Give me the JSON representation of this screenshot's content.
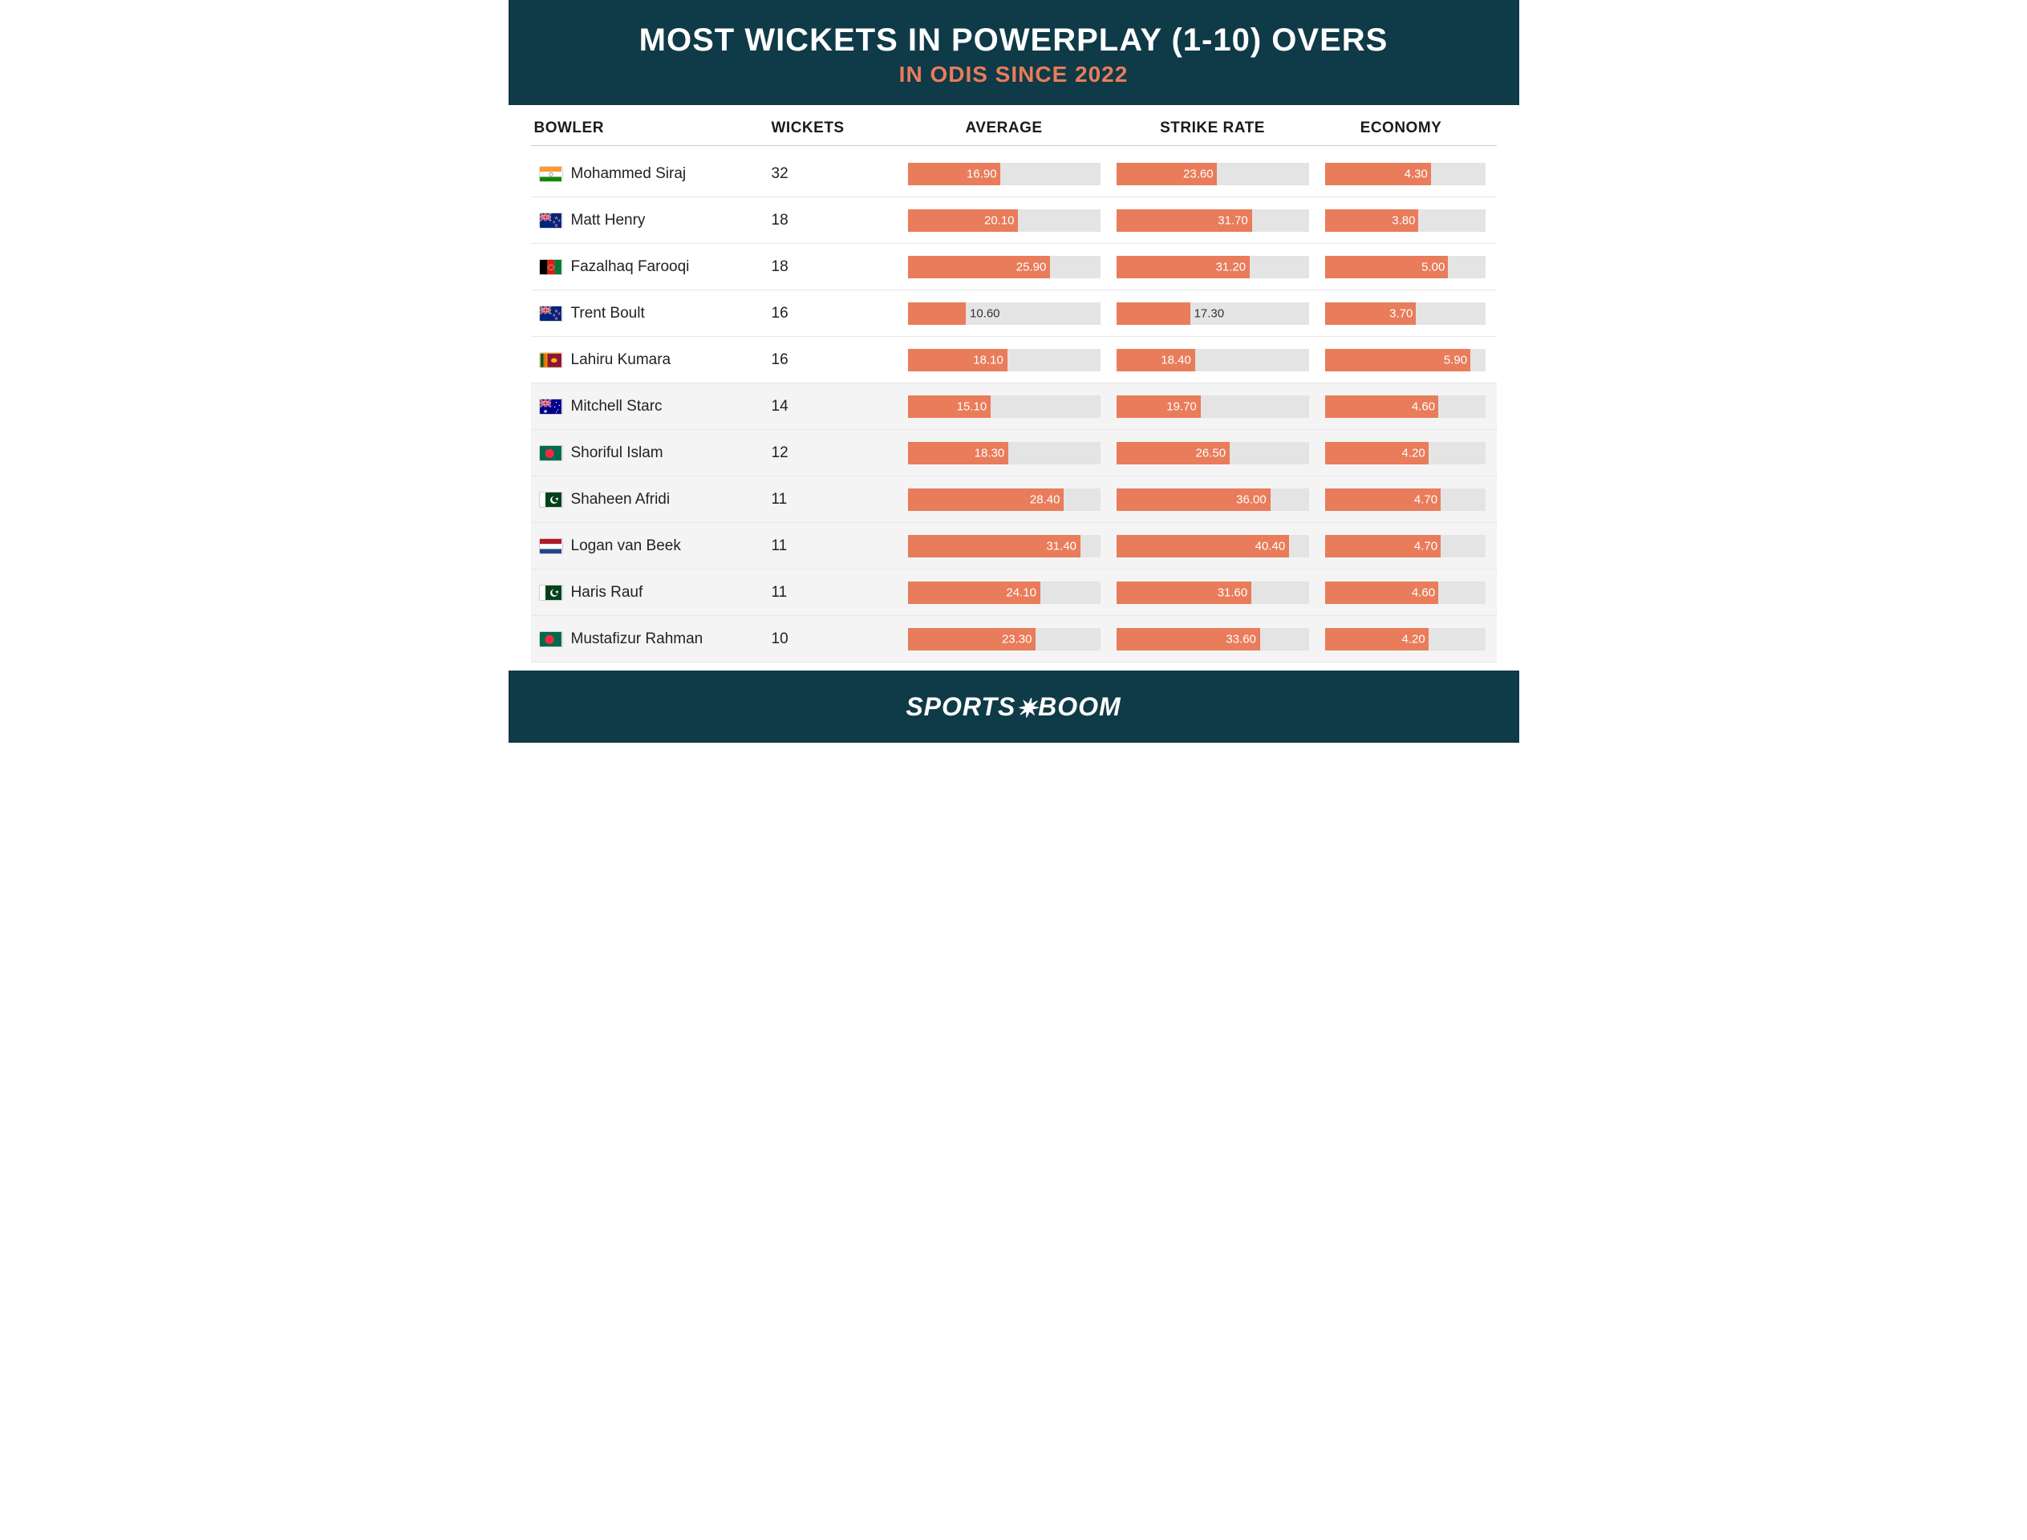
{
  "colors": {
    "header_bg": "#0f3a47",
    "title_color": "#ffffff",
    "subtitle_color": "#e97c5a",
    "bar_fill": "#e97c5a",
    "bar_track": "#e4e4e4",
    "row_border": "#e6e6e6",
    "shaded_row_bg": "#f4f4f4",
    "text_color": "#222222",
    "label_inside": "#ffffff",
    "label_outside": "#333333"
  },
  "header": {
    "title": "MOST WICKETS IN POWERPLAY (1-10) OVERS",
    "subtitle": "IN ODIS SINCE 2022"
  },
  "columns": {
    "bowler": "BOWLER",
    "wickets": "WICKETS",
    "average": "AVERAGE",
    "strike_rate": "STRIKE RATE",
    "economy": "ECONOMY"
  },
  "scales": {
    "average_max": 35,
    "strike_rate_max": 45,
    "economy_max": 6.5
  },
  "label_threshold_pct": 40,
  "shaded_start_index": 5,
  "rows": [
    {
      "flag": "india",
      "name": "Mohammed Siraj",
      "wickets": 32,
      "average": 16.9,
      "strike_rate": 23.6,
      "economy": 4.3
    },
    {
      "flag": "newzealand",
      "name": "Matt Henry",
      "wickets": 18,
      "average": 20.1,
      "strike_rate": 31.7,
      "economy": 3.8
    },
    {
      "flag": "afghanistan",
      "name": "Fazalhaq Farooqi",
      "wickets": 18,
      "average": 25.9,
      "strike_rate": 31.2,
      "economy": 5.0
    },
    {
      "flag": "newzealand",
      "name": "Trent Boult",
      "wickets": 16,
      "average": 10.6,
      "strike_rate": 17.3,
      "economy": 3.7
    },
    {
      "flag": "srilanka",
      "name": "Lahiru Kumara",
      "wickets": 16,
      "average": 18.1,
      "strike_rate": 18.4,
      "economy": 5.9
    },
    {
      "flag": "australia",
      "name": "Mitchell Starc",
      "wickets": 14,
      "average": 15.1,
      "strike_rate": 19.7,
      "economy": 4.6
    },
    {
      "flag": "bangladesh",
      "name": "Shoriful Islam",
      "wickets": 12,
      "average": 18.3,
      "strike_rate": 26.5,
      "economy": 4.2
    },
    {
      "flag": "pakistan",
      "name": "Shaheen Afridi",
      "wickets": 11,
      "average": 28.4,
      "strike_rate": 36.0,
      "economy": 4.7
    },
    {
      "flag": "netherlands",
      "name": "Logan van Beek",
      "wickets": 11,
      "average": 31.4,
      "strike_rate": 40.4,
      "economy": 4.7
    },
    {
      "flag": "pakistan",
      "name": "Haris Rauf",
      "wickets": 11,
      "average": 24.1,
      "strike_rate": 31.6,
      "economy": 4.6
    },
    {
      "flag": "bangladesh",
      "name": "Mustafizur Rahman",
      "wickets": 10,
      "average": 23.3,
      "strike_rate": 33.6,
      "economy": 4.2
    }
  ],
  "footer": {
    "brand_pre": "SPORTS",
    "brand_post": "BOOM"
  }
}
